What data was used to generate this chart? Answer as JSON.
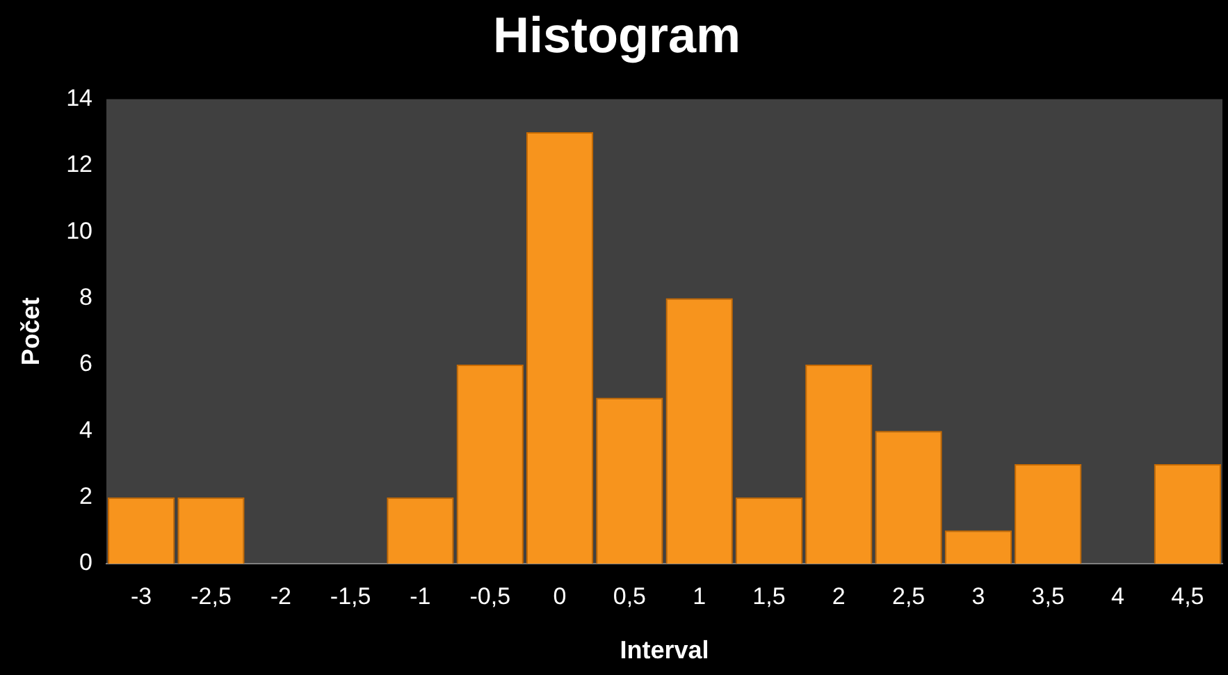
{
  "chart_data": {
    "type": "bar",
    "title": "Histogram",
    "xlabel": "Interval",
    "ylabel": "Počet",
    "categories": [
      "-3",
      "-2,5",
      "-2",
      "-1,5",
      "-1",
      "-0,5",
      "0",
      "0,5",
      "1",
      "1,5",
      "2",
      "2,5",
      "3",
      "3,5",
      "4",
      "4,5"
    ],
    "values": [
      2,
      2,
      0,
      0,
      2,
      6,
      13,
      5,
      8,
      2,
      6,
      4,
      1,
      3,
      0,
      3
    ],
    "color": "#f7941d",
    "ylim": [
      0,
      14
    ],
    "yticks": [
      0,
      2,
      4,
      6,
      8,
      10,
      12,
      14
    ],
    "legend": false
  }
}
